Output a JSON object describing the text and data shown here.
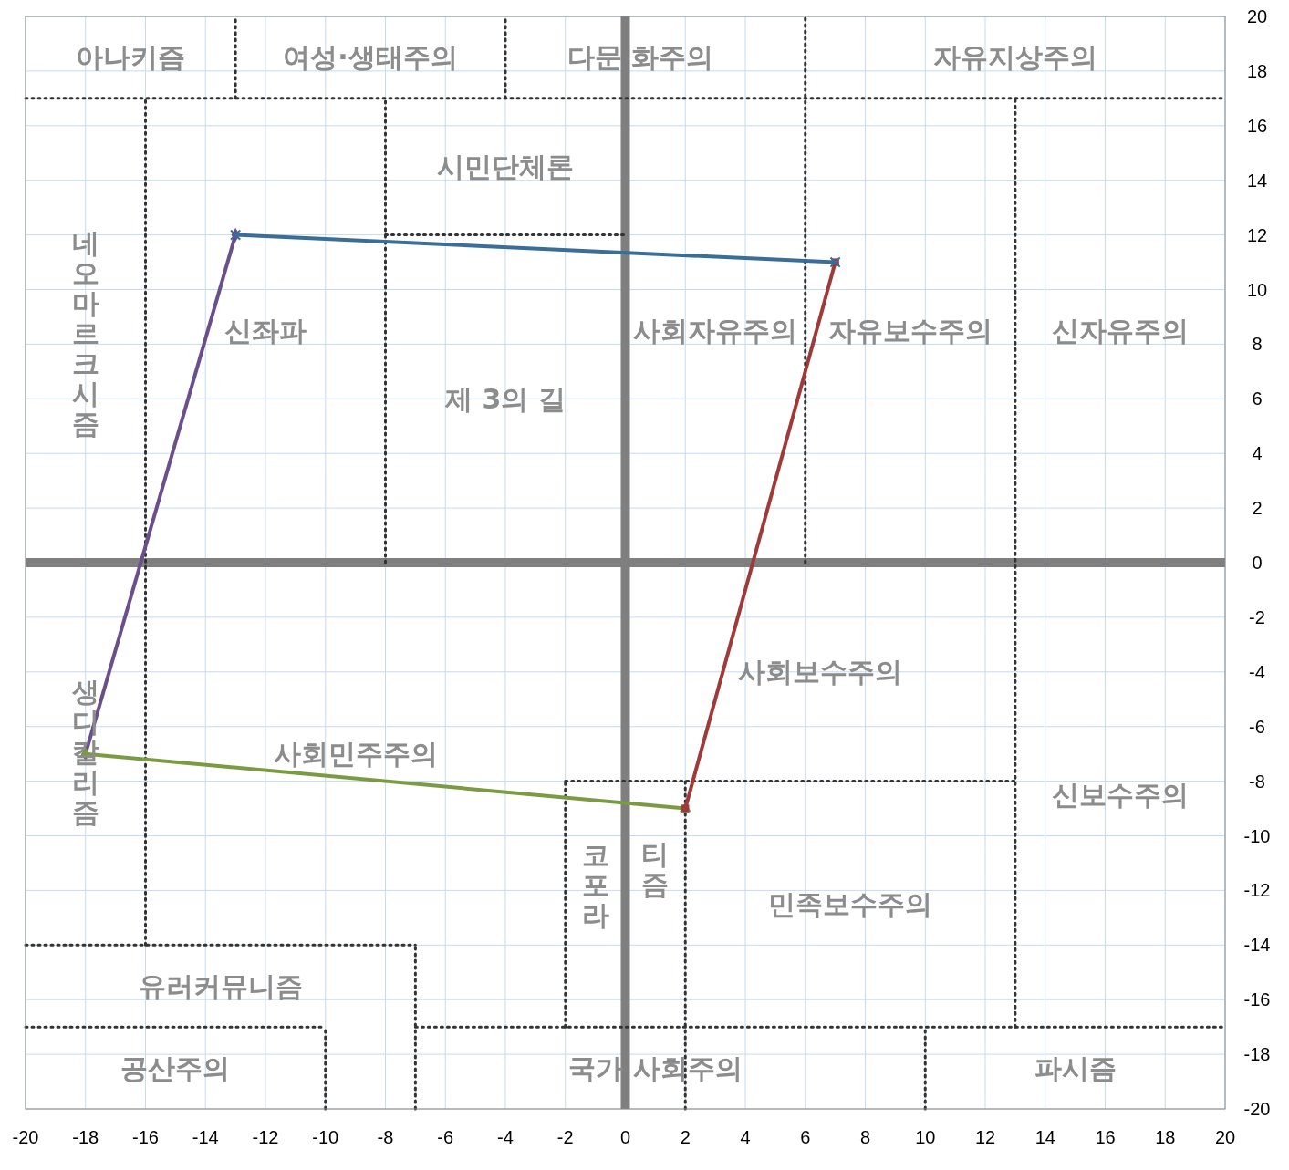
{
  "chart_data": {
    "type": "line",
    "xlim": [
      -20,
      20
    ],
    "ylim": [
      -20,
      20
    ],
    "xticks": [
      -20,
      -18,
      -16,
      -14,
      -12,
      -10,
      -8,
      -6,
      -4,
      -2,
      0,
      2,
      4,
      6,
      8,
      10,
      12,
      14,
      16,
      18,
      20
    ],
    "yticks": [
      -20,
      -18,
      -16,
      -14,
      -12,
      -10,
      -8,
      -6,
      -4,
      -2,
      0,
      2,
      4,
      6,
      8,
      10,
      12,
      14,
      16,
      18,
      20
    ],
    "grid": true,
    "series": [
      {
        "x": [
          -13,
          7
        ],
        "values": [
          12,
          11
        ],
        "color": "#3a6d97",
        "marker": "cross",
        "line_style": "solid"
      },
      {
        "x": [
          7,
          2
        ],
        "values": [
          11,
          -9
        ],
        "color": "#9e3a38",
        "marker": "square",
        "line_style": "solid"
      },
      {
        "x": [
          -18,
          2
        ],
        "values": [
          -7,
          -9
        ],
        "color": "#7b9b42",
        "marker": "triangle",
        "line_style": "solid"
      },
      {
        "x": [
          -18,
          -13
        ],
        "values": [
          -7,
          12
        ],
        "color": "#6a4f8a",
        "marker": "diamond",
        "line_style": "solid"
      },
      {
        "x": [
          -20,
          20
        ],
        "values": [
          17,
          17
        ],
        "color": "#333333",
        "marker": "none",
        "line_style": "dotted"
      },
      {
        "x": [
          -13,
          -13
        ],
        "values": [
          17,
          20
        ],
        "color": "#333333",
        "marker": "none",
        "line_style": "dotted"
      },
      {
        "x": [
          -4,
          -4
        ],
        "values": [
          17,
          20
        ],
        "color": "#333333",
        "marker": "none",
        "line_style": "dotted"
      },
      {
        "x": [
          6,
          6
        ],
        "values": [
          0,
          20
        ],
        "color": "#333333",
        "marker": "none",
        "line_style": "dotted"
      },
      {
        "x": [
          -16,
          -16
        ],
        "values": [
          -14,
          17
        ],
        "color": "#333333",
        "marker": "none",
        "line_style": "dotted"
      },
      {
        "x": [
          -8,
          -8
        ],
        "values": [
          0,
          17
        ],
        "color": "#333333",
        "marker": "none",
        "line_style": "dotted"
      },
      {
        "x": [
          -8,
          0
        ],
        "values": [
          12,
          12
        ],
        "color": "#333333",
        "marker": "none",
        "line_style": "dotted"
      },
      {
        "x": [
          13,
          13
        ],
        "values": [
          -17,
          17
        ],
        "color": "#333333",
        "marker": "none",
        "line_style": "dotted"
      },
      {
        "x": [
          -2,
          13
        ],
        "values": [
          -8,
          -8
        ],
        "color": "#333333",
        "marker": "none",
        "line_style": "dotted"
      },
      {
        "x": [
          -2,
          -2
        ],
        "values": [
          -17,
          -8
        ],
        "color": "#333333",
        "marker": "none",
        "line_style": "dotted"
      },
      {
        "x": [
          2,
          2
        ],
        "values": [
          -20,
          -8
        ],
        "color": "#333333",
        "marker": "none",
        "line_style": "dotted"
      },
      {
        "x": [
          -20,
          -7
        ],
        "values": [
          -14,
          -14
        ],
        "color": "#333333",
        "marker": "none",
        "line_style": "dotted"
      },
      {
        "x": [
          -7,
          -7
        ],
        "values": [
          -20,
          -14
        ],
        "color": "#333333",
        "marker": "none",
        "line_style": "dotted"
      },
      {
        "x": [
          -20,
          -10
        ],
        "values": [
          -17,
          -17
        ],
        "color": "#333333",
        "marker": "none",
        "line_style": "dotted"
      },
      {
        "x": [
          -7,
          20
        ],
        "values": [
          -17,
          -17
        ],
        "color": "#333333",
        "marker": "none",
        "line_style": "dotted"
      },
      {
        "x": [
          -10,
          -10
        ],
        "values": [
          -20,
          -17
        ],
        "color": "#333333",
        "marker": "none",
        "line_style": "dotted"
      },
      {
        "x": [
          10,
          10
        ],
        "values": [
          -20,
          -17
        ],
        "color": "#333333",
        "marker": "none",
        "line_style": "dotted"
      }
    ],
    "annotations": [
      "아나키즘",
      "여성·생태주의",
      "다문 화주의",
      "자유지상주의",
      "시민단체론",
      "네오마르크시즘",
      "신좌파",
      "제 3의 길",
      "사회자유주의",
      "자유보수주의",
      "신자유주의",
      "사회보수주의",
      "생디칼리즘",
      "사회민주주의",
      "신보수주의",
      "코포라",
      "티즘",
      "민족보수주의",
      "유러커뮤니즘",
      "공산주의",
      "국가 사회주의",
      "파시즘"
    ]
  }
}
